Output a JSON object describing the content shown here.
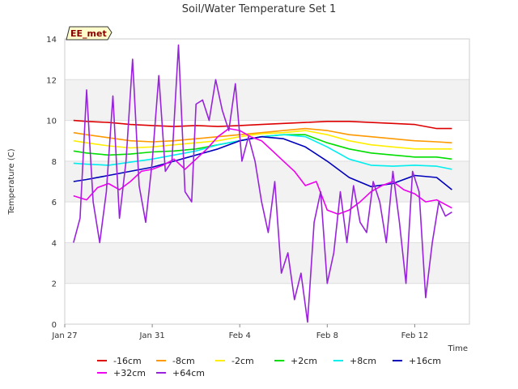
{
  "chart_data": {
    "type": "line",
    "title": "Soil/Water Temperature Set 1",
    "xlabel": "Time",
    "ylabel": "Temperature (C)",
    "badge": "EE_met",
    "ylim": [
      0,
      14
    ],
    "xlim": [
      0,
      18.5
    ],
    "yticks": [
      0,
      2,
      4,
      6,
      8,
      10,
      12,
      14
    ],
    "xticks": [
      {
        "x": 0,
        "label": "Jan 27"
      },
      {
        "x": 4,
        "label": "Jan 31"
      },
      {
        "x": 8,
        "label": "Feb 4"
      },
      {
        "x": 12,
        "label": "Feb 8"
      },
      {
        "x": 16,
        "label": "Feb 12"
      }
    ],
    "grid": true,
    "legend": "bottom",
    "series": [
      {
        "name": "-16cm",
        "color": "#dd0000",
        "x": [
          0.4,
          1,
          2,
          3,
          4,
          5,
          6,
          7,
          8,
          9,
          10,
          11,
          12,
          13,
          14,
          15,
          16,
          17,
          17.7
        ],
        "y": [
          10.0,
          9.95,
          9.9,
          9.8,
          9.75,
          9.7,
          9.75,
          9.7,
          9.75,
          9.8,
          9.85,
          9.9,
          9.95,
          9.95,
          9.9,
          9.85,
          9.8,
          9.6,
          9.6
        ]
      },
      {
        "name": "-8cm",
        "color": "#ff9900",
        "x": [
          0.4,
          1,
          2,
          3,
          4,
          5,
          6,
          7,
          8,
          9,
          10,
          11,
          12,
          13,
          14,
          15,
          16,
          17,
          17.7
        ],
        "y": [
          9.4,
          9.3,
          9.15,
          9.0,
          8.95,
          9.0,
          9.1,
          9.2,
          9.3,
          9.4,
          9.5,
          9.6,
          9.5,
          9.3,
          9.2,
          9.1,
          9.0,
          8.95,
          8.9
        ]
      },
      {
        "name": "-2cm",
        "color": "#ffee00",
        "x": [
          0.4,
          1,
          2,
          3,
          4,
          5,
          6,
          7,
          8,
          9,
          10,
          11,
          12,
          13,
          14,
          15,
          16,
          17,
          17.7
        ],
        "y": [
          9.0,
          8.9,
          8.75,
          8.65,
          8.7,
          8.8,
          8.9,
          9.0,
          9.2,
          9.35,
          9.4,
          9.5,
          9.3,
          9.0,
          8.8,
          8.7,
          8.6,
          8.6,
          8.6
        ]
      },
      {
        "name": "+2cm",
        "color": "#00dd00",
        "x": [
          0.4,
          1,
          2,
          3,
          4,
          5,
          6,
          7,
          8,
          9,
          10,
          11,
          12,
          13,
          14,
          15,
          16,
          17,
          17.7
        ],
        "y": [
          8.5,
          8.4,
          8.3,
          8.35,
          8.45,
          8.5,
          8.6,
          8.8,
          9.0,
          9.2,
          9.3,
          9.3,
          8.9,
          8.6,
          8.4,
          8.3,
          8.2,
          8.2,
          8.1
        ]
      },
      {
        "name": "+8cm",
        "color": "#00eeee",
        "x": [
          0.4,
          1,
          2,
          3,
          4,
          5,
          6,
          7,
          8,
          9,
          10,
          11,
          12,
          13,
          14,
          15,
          16,
          17,
          17.7
        ],
        "y": [
          7.9,
          7.85,
          7.8,
          7.95,
          8.1,
          8.3,
          8.5,
          8.8,
          9.0,
          9.2,
          9.3,
          9.2,
          8.7,
          8.1,
          7.8,
          7.75,
          7.8,
          7.75,
          7.6
        ]
      },
      {
        "name": "+16cm",
        "color": "#0000bb",
        "x": [
          0.4,
          1,
          2,
          3,
          4,
          5,
          6,
          7,
          8,
          9,
          10,
          11,
          12,
          13,
          14,
          15,
          16,
          17,
          17.7
        ],
        "y": [
          7.0,
          7.1,
          7.3,
          7.5,
          7.7,
          8.0,
          8.3,
          8.6,
          9.0,
          9.2,
          9.1,
          8.7,
          8.0,
          7.2,
          6.75,
          6.9,
          7.3,
          7.2,
          6.6
        ]
      },
      {
        "name": "+32cm",
        "color": "#ee00ee",
        "x": [
          0.4,
          1,
          1.5,
          2,
          2.5,
          3,
          3.5,
          4,
          4.5,
          5,
          5.5,
          6,
          6.5,
          7,
          7.5,
          8,
          8.5,
          9,
          9.5,
          10,
          10.5,
          11,
          11.5,
          12,
          12.5,
          13,
          13.5,
          14,
          14.5,
          15,
          15.5,
          16,
          16.5,
          17,
          17.7
        ],
        "y": [
          6.3,
          6.1,
          6.7,
          6.9,
          6.6,
          7.0,
          7.5,
          7.6,
          7.8,
          8.1,
          7.6,
          8.1,
          8.6,
          9.2,
          9.6,
          9.5,
          9.2,
          9.0,
          8.5,
          8.0,
          7.5,
          6.8,
          7.0,
          5.6,
          5.4,
          5.6,
          6.0,
          6.5,
          6.8,
          7.0,
          6.6,
          6.4,
          6.0,
          6.1,
          5.7
        ]
      },
      {
        "name": "+64cm",
        "color": "#9922dd",
        "x": [
          0.4,
          0.7,
          1.0,
          1.3,
          1.6,
          1.9,
          2.2,
          2.5,
          2.8,
          3.1,
          3.4,
          3.7,
          4.0,
          4.3,
          4.6,
          4.9,
          5.2,
          5.5,
          5.8,
          6.0,
          6.3,
          6.6,
          6.9,
          7.2,
          7.5,
          7.8,
          8.1,
          8.4,
          8.7,
          9.0,
          9.3,
          9.6,
          9.9,
          10.2,
          10.5,
          10.8,
          11.1,
          11.4,
          11.7,
          12.0,
          12.3,
          12.6,
          12.9,
          13.2,
          13.5,
          13.8,
          14.1,
          14.4,
          14.7,
          15.0,
          15.3,
          15.6,
          15.9,
          16.2,
          16.5,
          16.8,
          17.1,
          17.4,
          17.7
        ],
        "y": [
          4.0,
          5.2,
          11.5,
          6.0,
          4.0,
          6.5,
          11.2,
          5.2,
          8.0,
          13.0,
          6.8,
          5.0,
          8.0,
          12.2,
          7.5,
          8.0,
          13.7,
          6.5,
          6.0,
          10.8,
          11.0,
          10.0,
          12.0,
          10.5,
          9.5,
          11.8,
          8.0,
          9.2,
          8.0,
          6.0,
          4.5,
          7.0,
          2.5,
          3.5,
          1.2,
          2.5,
          0.1,
          5.0,
          6.5,
          2.0,
          3.5,
          6.5,
          4.0,
          6.8,
          5.0,
          4.5,
          7.0,
          6.0,
          4.0,
          7.5,
          5.0,
          2.0,
          7.5,
          6.5,
          1.3,
          4.0,
          6.0,
          5.3,
          5.5
        ]
      }
    ]
  }
}
